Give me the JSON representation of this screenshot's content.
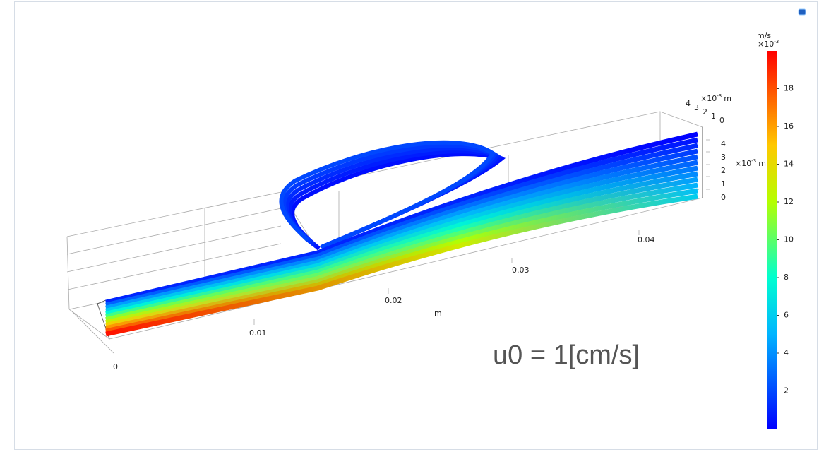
{
  "plot": {
    "annotation": "u0 = 1[cm/s]",
    "colorbar": {
      "unit": "m/s",
      "multiplier": {
        "base": "×10",
        "exponent": "-3"
      },
      "range": [
        0,
        20
      ],
      "ticks": [
        2,
        4,
        6,
        8,
        10,
        12,
        14,
        16,
        18
      ]
    },
    "x_axis": {
      "unit": "m",
      "ticks": [
        0,
        0.01,
        0.02,
        0.03,
        0.04
      ]
    },
    "z_axis": {
      "unit": "m",
      "multiplier": {
        "base": "×10",
        "exponent": "-3"
      },
      "ticks": [
        0,
        1,
        2,
        3,
        4
      ]
    },
    "y_axis": {
      "unit": "m",
      "multiplier": {
        "base": "×10",
        "exponent": "-3"
      },
      "ticks": [
        4,
        3,
        2,
        1,
        0
      ]
    }
  }
}
